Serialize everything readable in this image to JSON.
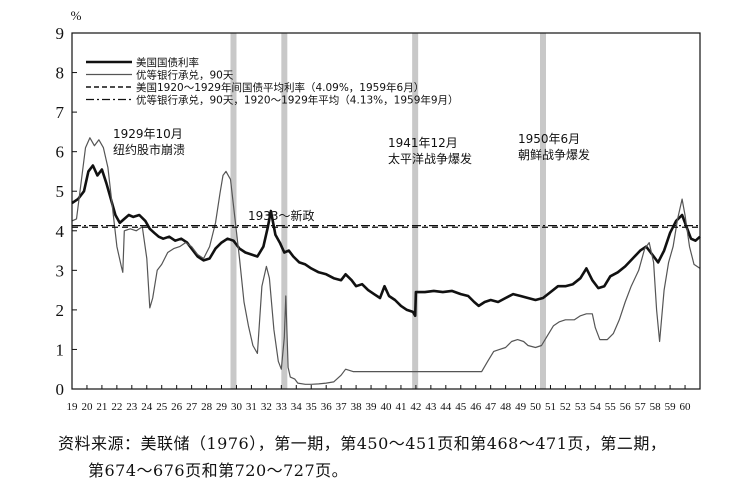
{
  "chart_data": {
    "type": "line",
    "ylabel": "%",
    "ylim": [
      0,
      9
    ],
    "y_ticks": [
      "0",
      "1",
      "2",
      "3",
      "4",
      "5",
      "6",
      "7",
      "8",
      "9"
    ],
    "xlim": [
      1919,
      1961
    ],
    "x_ticks": [
      "19",
      "20",
      "21",
      "22",
      "23",
      "24",
      "25",
      "26",
      "27",
      "28",
      "29",
      "30",
      "31",
      "32",
      "33",
      "34",
      "35",
      "36",
      "37",
      "38",
      "39",
      "40",
      "41",
      "42",
      "43",
      "44",
      "45",
      "46",
      "47",
      "48",
      "49",
      "50",
      "51",
      "52",
      "53",
      "54",
      "55",
      "56",
      "57",
      "58",
      "59",
      "60"
    ],
    "legend_position": "top-left",
    "series": [
      {
        "name": "美国国债利率",
        "style": "bold-solid",
        "points": [
          [
            1919.0,
            4.7
          ],
          [
            1919.4,
            4.8
          ],
          [
            1919.8,
            5.0
          ],
          [
            1920.1,
            5.5
          ],
          [
            1920.4,
            5.65
          ],
          [
            1920.7,
            5.4
          ],
          [
            1921.0,
            5.55
          ],
          [
            1921.3,
            5.2
          ],
          [
            1921.6,
            4.8
          ],
          [
            1921.9,
            4.4
          ],
          [
            1922.2,
            4.2
          ],
          [
            1922.5,
            4.3
          ],
          [
            1922.8,
            4.4
          ],
          [
            1923.1,
            4.35
          ],
          [
            1923.5,
            4.4
          ],
          [
            1923.9,
            4.25
          ],
          [
            1924.2,
            4.05
          ],
          [
            1924.5,
            3.95
          ],
          [
            1924.8,
            3.85
          ],
          [
            1925.1,
            3.8
          ],
          [
            1925.5,
            3.85
          ],
          [
            1925.9,
            3.75
          ],
          [
            1926.3,
            3.8
          ],
          [
            1926.7,
            3.7
          ],
          [
            1927.0,
            3.55
          ],
          [
            1927.4,
            3.35
          ],
          [
            1927.8,
            3.25
          ],
          [
            1928.2,
            3.3
          ],
          [
            1928.6,
            3.55
          ],
          [
            1929.0,
            3.7
          ],
          [
            1929.4,
            3.8
          ],
          [
            1929.8,
            3.75
          ],
          [
            1930.2,
            3.55
          ],
          [
            1930.6,
            3.45
          ],
          [
            1931.0,
            3.4
          ],
          [
            1931.4,
            3.35
          ],
          [
            1931.8,
            3.6
          ],
          [
            1932.1,
            4.1
          ],
          [
            1932.3,
            4.5
          ],
          [
            1932.6,
            3.9
          ],
          [
            1932.9,
            3.7
          ],
          [
            1933.2,
            3.45
          ],
          [
            1933.5,
            3.5
          ],
          [
            1933.8,
            3.35
          ],
          [
            1934.2,
            3.2
          ],
          [
            1934.6,
            3.15
          ],
          [
            1935.0,
            3.05
          ],
          [
            1935.5,
            2.95
          ],
          [
            1936.0,
            2.9
          ],
          [
            1936.5,
            2.8
          ],
          [
            1937.0,
            2.75
          ],
          [
            1937.3,
            2.9
          ],
          [
            1937.7,
            2.75
          ],
          [
            1938.0,
            2.6
          ],
          [
            1938.4,
            2.65
          ],
          [
            1938.8,
            2.5
          ],
          [
            1939.2,
            2.4
          ],
          [
            1939.6,
            2.3
          ],
          [
            1939.9,
            2.6
          ],
          [
            1940.2,
            2.35
          ],
          [
            1940.6,
            2.25
          ],
          [
            1941.0,
            2.1
          ],
          [
            1941.4,
            2.0
          ],
          [
            1941.8,
            1.95
          ],
          [
            1941.95,
            1.85
          ],
          [
            1942.0,
            2.45
          ],
          [
            1942.6,
            2.45
          ],
          [
            1943.2,
            2.48
          ],
          [
            1943.8,
            2.45
          ],
          [
            1944.4,
            2.48
          ],
          [
            1945.0,
            2.4
          ],
          [
            1945.5,
            2.35
          ],
          [
            1945.9,
            2.2
          ],
          [
            1946.2,
            2.1
          ],
          [
            1946.6,
            2.2
          ],
          [
            1947.0,
            2.25
          ],
          [
            1947.5,
            2.2
          ],
          [
            1948.0,
            2.3
          ],
          [
            1948.5,
            2.4
          ],
          [
            1949.0,
            2.35
          ],
          [
            1949.5,
            2.3
          ],
          [
            1950.0,
            2.25
          ],
          [
            1950.5,
            2.3
          ],
          [
            1951.0,
            2.45
          ],
          [
            1951.5,
            2.6
          ],
          [
            1952.0,
            2.6
          ],
          [
            1952.5,
            2.65
          ],
          [
            1953.0,
            2.8
          ],
          [
            1953.4,
            3.05
          ],
          [
            1953.8,
            2.75
          ],
          [
            1954.2,
            2.55
          ],
          [
            1954.6,
            2.6
          ],
          [
            1955.0,
            2.85
          ],
          [
            1955.5,
            2.95
          ],
          [
            1956.0,
            3.1
          ],
          [
            1956.5,
            3.3
          ],
          [
            1957.0,
            3.5
          ],
          [
            1957.4,
            3.6
          ],
          [
            1957.8,
            3.4
          ],
          [
            1958.2,
            3.2
          ],
          [
            1958.6,
            3.5
          ],
          [
            1959.0,
            3.95
          ],
          [
            1959.4,
            4.25
          ],
          [
            1959.8,
            4.4
          ],
          [
            1960.1,
            4.1
          ],
          [
            1960.4,
            3.8
          ],
          [
            1960.7,
            3.75
          ],
          [
            1961.0,
            3.85
          ]
        ]
      },
      {
        "name": "优等银行承兑，90天",
        "style": "thin-solid",
        "points": [
          [
            1919.0,
            4.25
          ],
          [
            1919.3,
            4.3
          ],
          [
            1919.6,
            5.2
          ],
          [
            1919.9,
            6.1
          ],
          [
            1920.2,
            6.35
          ],
          [
            1920.5,
            6.15
          ],
          [
            1920.8,
            6.3
          ],
          [
            1921.1,
            6.1
          ],
          [
            1921.4,
            5.6
          ],
          [
            1921.7,
            4.6
          ],
          [
            1922.0,
            3.6
          ],
          [
            1922.3,
            3.1
          ],
          [
            1922.4,
            2.95
          ],
          [
            1922.5,
            4.0
          ],
          [
            1922.9,
            4.05
          ],
          [
            1923.3,
            4.0
          ],
          [
            1923.7,
            4.1
          ],
          [
            1924.0,
            3.3
          ],
          [
            1924.2,
            2.05
          ],
          [
            1924.4,
            2.3
          ],
          [
            1924.7,
            3.0
          ],
          [
            1925.0,
            3.15
          ],
          [
            1925.4,
            3.45
          ],
          [
            1925.8,
            3.55
          ],
          [
            1926.2,
            3.6
          ],
          [
            1926.6,
            3.7
          ],
          [
            1927.0,
            3.6
          ],
          [
            1927.4,
            3.4
          ],
          [
            1927.8,
            3.3
          ],
          [
            1928.2,
            3.6
          ],
          [
            1928.6,
            4.2
          ],
          [
            1928.9,
            4.95
          ],
          [
            1929.1,
            5.4
          ],
          [
            1929.3,
            5.5
          ],
          [
            1929.6,
            5.3
          ],
          [
            1929.9,
            4.3
          ],
          [
            1930.2,
            3.3
          ],
          [
            1930.5,
            2.2
          ],
          [
            1930.8,
            1.6
          ],
          [
            1931.1,
            1.1
          ],
          [
            1931.4,
            0.9
          ],
          [
            1931.7,
            2.6
          ],
          [
            1932.0,
            3.1
          ],
          [
            1932.2,
            2.8
          ],
          [
            1932.5,
            1.5
          ],
          [
            1932.8,
            0.7
          ],
          [
            1933.0,
            0.5
          ],
          [
            1933.2,
            1.3
          ],
          [
            1933.3,
            2.35
          ],
          [
            1933.45,
            0.55
          ],
          [
            1933.6,
            0.3
          ],
          [
            1933.9,
            0.25
          ],
          [
            1934.1,
            0.15
          ],
          [
            1934.6,
            0.12
          ],
          [
            1935.0,
            0.12
          ],
          [
            1935.5,
            0.13
          ],
          [
            1936.0,
            0.15
          ],
          [
            1936.5,
            0.18
          ],
          [
            1937.0,
            0.35
          ],
          [
            1937.3,
            0.5
          ],
          [
            1937.8,
            0.44
          ],
          [
            1938.5,
            0.44
          ],
          [
            1939.5,
            0.44
          ],
          [
            1940.5,
            0.44
          ],
          [
            1941.5,
            0.44
          ],
          [
            1942.5,
            0.44
          ],
          [
            1943.5,
            0.44
          ],
          [
            1944.5,
            0.44
          ],
          [
            1945.5,
            0.44
          ],
          [
            1946.4,
            0.44
          ],
          [
            1946.8,
            0.7
          ],
          [
            1947.2,
            0.95
          ],
          [
            1947.6,
            1.0
          ],
          [
            1948.0,
            1.05
          ],
          [
            1948.4,
            1.2
          ],
          [
            1948.8,
            1.25
          ],
          [
            1949.2,
            1.2
          ],
          [
            1949.5,
            1.1
          ],
          [
            1950.0,
            1.05
          ],
          [
            1950.4,
            1.1
          ],
          [
            1950.8,
            1.35
          ],
          [
            1951.2,
            1.6
          ],
          [
            1951.6,
            1.7
          ],
          [
            1952.0,
            1.75
          ],
          [
            1952.6,
            1.75
          ],
          [
            1953.0,
            1.85
          ],
          [
            1953.4,
            1.9
          ],
          [
            1953.8,
            1.9
          ],
          [
            1954.0,
            1.55
          ],
          [
            1954.3,
            1.25
          ],
          [
            1954.8,
            1.25
          ],
          [
            1955.2,
            1.4
          ],
          [
            1955.6,
            1.75
          ],
          [
            1956.0,
            2.2
          ],
          [
            1956.4,
            2.6
          ],
          [
            1956.9,
            3.0
          ],
          [
            1957.3,
            3.55
          ],
          [
            1957.6,
            3.7
          ],
          [
            1957.9,
            3.2
          ],
          [
            1958.1,
            2.0
          ],
          [
            1958.3,
            1.2
          ],
          [
            1958.6,
            2.5
          ],
          [
            1958.9,
            3.2
          ],
          [
            1959.2,
            3.6
          ],
          [
            1959.5,
            4.3
          ],
          [
            1959.8,
            4.8
          ],
          [
            1960.0,
            4.4
          ],
          [
            1960.3,
            3.6
          ],
          [
            1960.6,
            3.15
          ],
          [
            1961.0,
            3.05
          ]
        ]
      },
      {
        "name": "美国1920～1929年间国债平均利率（4.09%，1959年6月）",
        "style": "dashed",
        "value": 4.09
      },
      {
        "name": "优等银行承兑，90天，1920～1929年平均（4.13%，1959年9月）",
        "style": "dash-dot",
        "value": 4.13
      }
    ],
    "event_bands": [
      {
        "x": 1929.8,
        "label_lines": [
          "1929年10月",
          "纽约股市崩溃"
        ]
      },
      {
        "x": 1933.2,
        "label_lines": [
          "1933～新政"
        ]
      },
      {
        "x": 1941.95,
        "label_lines": [
          "1941年12月",
          "太平洋战争爆发"
        ]
      },
      {
        "x": 1950.5,
        "label_lines": [
          "1950年6月",
          "朝鲜战争爆发"
        ]
      }
    ]
  },
  "source": {
    "line1": "资料来源：美联储（1976），第一期，第450～451页和第468～471页，第二期，",
    "line2": "第674～676页和第720～727页。"
  },
  "colors": {
    "axis": "#111111",
    "band": "#c8c8c8",
    "series_bold": "#111111",
    "series_thin": "#555555"
  }
}
